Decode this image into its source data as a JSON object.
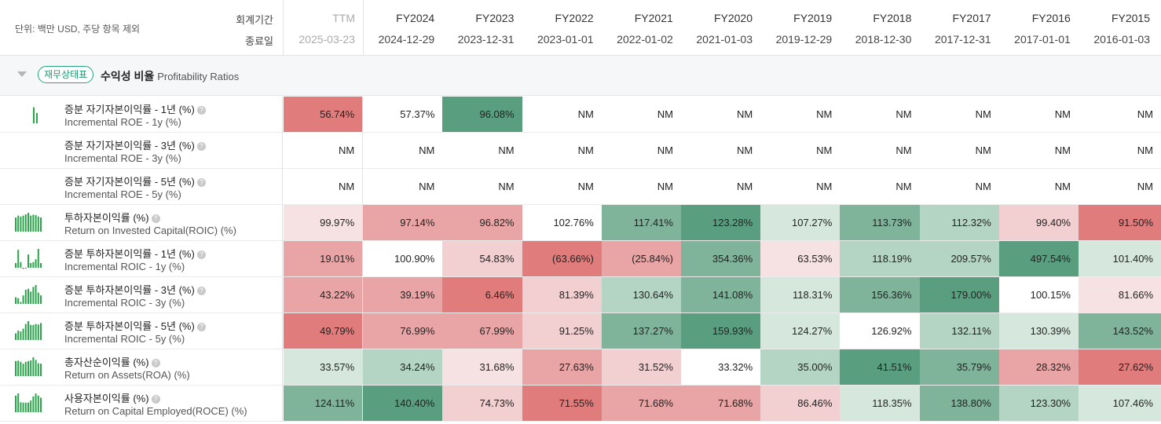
{
  "unit_note": "단위: 백만 USD, 주당 항목 제외",
  "header_labels": {
    "period": "회계기간",
    "end_date": "종료일"
  },
  "columns": [
    {
      "period": "TTM",
      "date": "2025-03-23"
    },
    {
      "period": "FY2024",
      "date": "2024-12-29"
    },
    {
      "period": "FY2023",
      "date": "2023-12-31"
    },
    {
      "period": "FY2022",
      "date": "2023-01-01"
    },
    {
      "period": "FY2021",
      "date": "2022-01-02"
    },
    {
      "period": "FY2020",
      "date": "2021-01-03"
    },
    {
      "period": "FY2019",
      "date": "2019-12-29"
    },
    {
      "period": "FY2018",
      "date": "2018-12-30"
    },
    {
      "period": "FY2017",
      "date": "2017-12-31"
    },
    {
      "period": "FY2016",
      "date": "2017-01-01"
    },
    {
      "period": "FY2015",
      "date": "2016-01-03"
    }
  ],
  "section": {
    "tag": "재무상태표",
    "title": "수익성 비율",
    "subtitle": "Profitability Ratios"
  },
  "help_glyph": "?",
  "colors": {
    "red_strong": "#e07c7c",
    "red_mid": "#e9a5a5",
    "red_light": "#f2cfd0",
    "red_pale": "#f7e2e3",
    "green_strong": "#5a9e80",
    "green_mid": "#7fb39a",
    "green_light": "#b4d5c4",
    "green_pale": "#d6e8de",
    "neutral": "#ffffff",
    "spark": "#2aa54a",
    "spark_neg": "#e0453a"
  },
  "rows": [
    {
      "ko": "증분 자기자본이익률 - 1년 (%)",
      "en": "Incremental ROE - 1y (%)",
      "spark": [
        0.85,
        0.55
      ],
      "spark_neg": [],
      "values": [
        "56.74%",
        "57.37%",
        "96.08%",
        "NM",
        "NM",
        "NM",
        "NM",
        "NM",
        "NM",
        "NM",
        "NM"
      ],
      "shades": [
        "red_strong",
        "neutral",
        "green_strong",
        "neutral",
        "neutral",
        "neutral",
        "neutral",
        "neutral",
        "neutral",
        "neutral",
        "neutral"
      ]
    },
    {
      "ko": "증분 자기자본이익률 - 3년 (%)",
      "en": "Incremental ROE - 3y (%)",
      "spark": [],
      "spark_neg": [],
      "values": [
        "NM",
        "NM",
        "NM",
        "NM",
        "NM",
        "NM",
        "NM",
        "NM",
        "NM",
        "NM",
        "NM"
      ],
      "shades": [
        "neutral",
        "neutral",
        "neutral",
        "neutral",
        "neutral",
        "neutral",
        "neutral",
        "neutral",
        "neutral",
        "neutral",
        "neutral"
      ]
    },
    {
      "ko": "증분 자기자본이익률 - 5년 (%)",
      "en": "Incremental ROE - 5y (%)",
      "spark": [],
      "spark_neg": [],
      "values": [
        "NM",
        "NM",
        "NM",
        "NM",
        "NM",
        "NM",
        "NM",
        "NM",
        "NM",
        "NM",
        "NM"
      ],
      "shades": [
        "neutral",
        "neutral",
        "neutral",
        "neutral",
        "neutral",
        "neutral",
        "neutral",
        "neutral",
        "neutral",
        "neutral",
        "neutral"
      ]
    },
    {
      "ko": "투하자본이익률 (%)",
      "en": "Return on Invested Capital(ROIC) (%)",
      "spark": [
        0.75,
        0.85,
        0.8,
        0.85,
        0.92,
        1.0,
        0.85,
        0.9,
        0.88,
        0.8,
        0.75
      ],
      "spark_neg": [],
      "values": [
        "99.97%",
        "97.14%",
        "96.82%",
        "102.76%",
        "117.41%",
        "123.28%",
        "107.27%",
        "113.73%",
        "112.32%",
        "99.40%",
        "91.50%"
      ],
      "shades": [
        "red_pale",
        "red_mid",
        "red_mid",
        "neutral",
        "green_mid",
        "green_strong",
        "green_pale",
        "green_mid",
        "green_light",
        "red_light",
        "red_strong"
      ]
    },
    {
      "ko": "증분 투하자본이익률 - 1년 (%)",
      "en": "Incremental ROIC - 1y (%)",
      "spark": [
        0.25,
        0.95,
        0.3,
        0.0,
        0.0,
        0.7,
        0.25,
        0.3,
        0.45,
        1.0,
        0.25
      ],
      "spark_neg": [
        0,
        0,
        0,
        0.25,
        0.15,
        0,
        0,
        0,
        0,
        0,
        0
      ],
      "values": [
        "19.01%",
        "100.90%",
        "54.83%",
        "(63.66%)",
        "(25.84%)",
        "354.36%",
        "63.53%",
        "118.19%",
        "209.57%",
        "497.54%",
        "101.40%"
      ],
      "shades": [
        "red_mid",
        "neutral",
        "red_light",
        "red_strong",
        "red_mid",
        "green_mid",
        "red_pale",
        "green_light",
        "green_light",
        "green_strong",
        "green_pale"
      ]
    },
    {
      "ko": "증분 투하자본이익률 - 3년 (%)",
      "en": "Incremental ROIC - 3y (%)",
      "spark": [
        0.35,
        0.3,
        0.1,
        0.45,
        0.75,
        0.8,
        0.65,
        0.9,
        1.0,
        0.6,
        0.45
      ],
      "spark_neg": [],
      "values": [
        "43.22%",
        "39.19%",
        "6.46%",
        "81.39%",
        "130.64%",
        "141.08%",
        "118.31%",
        "156.36%",
        "179.00%",
        "100.15%",
        "81.66%"
      ],
      "shades": [
        "red_mid",
        "red_mid",
        "red_strong",
        "red_light",
        "green_light",
        "green_mid",
        "green_pale",
        "green_mid",
        "green_strong",
        "neutral",
        "red_pale"
      ]
    },
    {
      "ko": "증분 투하자본이익률 - 5년 (%)",
      "en": "Incremental ROIC - 5y (%)",
      "spark": [
        0.35,
        0.5,
        0.45,
        0.6,
        0.85,
        1.0,
        0.8,
        0.8,
        0.85,
        0.82,
        0.9
      ],
      "spark_neg": [],
      "values": [
        "49.79%",
        "76.99%",
        "67.99%",
        "91.25%",
        "137.27%",
        "159.93%",
        "124.27%",
        "126.92%",
        "132.11%",
        "130.39%",
        "143.52%"
      ],
      "shades": [
        "red_strong",
        "red_mid",
        "red_mid",
        "red_light",
        "green_mid",
        "green_strong",
        "green_pale",
        "neutral",
        "green_light",
        "green_pale",
        "green_mid"
      ]
    },
    {
      "ko": "총자산순이익률 (%)",
      "en": "Return on Assets(ROA) (%)",
      "spark": [
        0.8,
        0.82,
        0.76,
        0.66,
        0.76,
        0.8,
        0.84,
        1.0,
        0.86,
        0.68,
        0.66
      ],
      "spark_neg": [],
      "values": [
        "33.57%",
        "34.24%",
        "31.68%",
        "27.63%",
        "31.52%",
        "33.32%",
        "35.00%",
        "41.51%",
        "35.79%",
        "28.32%",
        "27.62%"
      ],
      "shades": [
        "green_pale",
        "green_light",
        "red_pale",
        "red_mid",
        "red_light",
        "neutral",
        "green_light",
        "green_strong",
        "green_mid",
        "red_mid",
        "red_strong"
      ]
    },
    {
      "ko": "사용자본이익률 (%)",
      "en": "Return on Capital Employed(ROCE) (%)",
      "spark": [
        0.88,
        1.0,
        0.53,
        0.51,
        0.51,
        0.51,
        0.62,
        0.84,
        0.99,
        0.88,
        0.77
      ],
      "spark_neg": [],
      "values": [
        "124.11%",
        "140.40%",
        "74.73%",
        "71.55%",
        "71.68%",
        "71.68%",
        "86.46%",
        "118.35%",
        "138.80%",
        "123.30%",
        "107.46%"
      ],
      "shades": [
        "green_mid",
        "green_strong",
        "red_light",
        "red_strong",
        "red_mid",
        "red_mid",
        "red_light",
        "green_pale",
        "green_mid",
        "green_light",
        "green_pale"
      ]
    }
  ]
}
